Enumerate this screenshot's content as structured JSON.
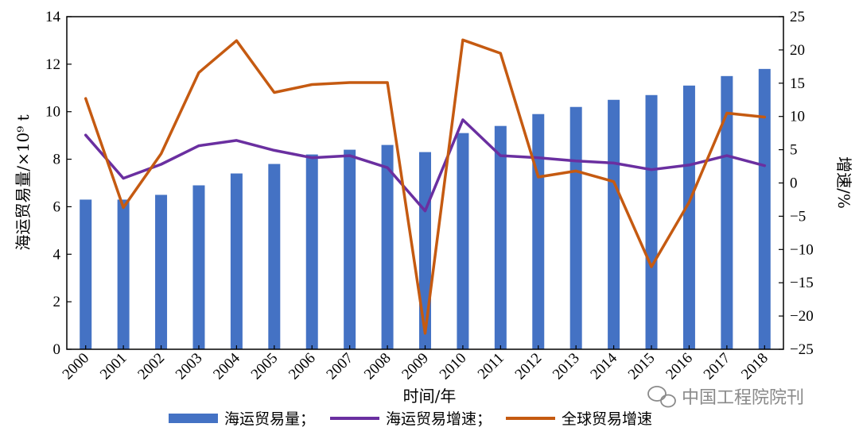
{
  "watermark": {
    "text": "中国工程院院刊",
    "icon": "wechat-icon",
    "color": "#8a8a8a"
  },
  "colors": {
    "bars": "#4472c4",
    "shipping_growth": "#6a2fa0",
    "global_growth": "#c55a11"
  },
  "chart_data": {
    "type": "bar",
    "xlabel": "时间/年",
    "ylabel": "海运贸易量/×10⁹ t",
    "y2label": "增速/%",
    "ylim": [
      0,
      14
    ],
    "y2lim": [
      -25,
      25
    ],
    "yticks": [
      "0",
      "2",
      "4",
      "6",
      "8",
      "10",
      "12",
      "14"
    ],
    "y2ticks": [
      "−25",
      "−20",
      "−15",
      "−10",
      "−5",
      "0",
      "5",
      "10",
      "15",
      "20",
      "25"
    ],
    "categories": [
      "2000",
      "2001",
      "2002",
      "2003",
      "2004",
      "2005",
      "2006",
      "2007",
      "2008",
      "2009",
      "2010",
      "2011",
      "2012",
      "2013",
      "2014",
      "2015",
      "2016",
      "2017",
      "2018"
    ],
    "grid": false,
    "legend_position": "bottom",
    "series": [
      {
        "name": "海运贸易量；",
        "type": "bar",
        "axis": "left",
        "values": [
          6.3,
          6.3,
          6.5,
          6.9,
          7.4,
          7.8,
          8.2,
          8.4,
          8.6,
          8.3,
          9.1,
          9.4,
          9.9,
          10.2,
          10.5,
          10.7,
          11.1,
          11.5,
          11.8
        ]
      },
      {
        "name": "海运贸易增速；",
        "type": "line",
        "axis": "right",
        "values": [
          7.2,
          0.7,
          2.8,
          5.6,
          6.4,
          4.9,
          3.8,
          4.1,
          2.3,
          -4.2,
          9.5,
          4.1,
          3.8,
          3.3,
          3.0,
          2.0,
          2.7,
          4.1,
          2.6
        ]
      },
      {
        "name": "全球贸易增速",
        "type": "line",
        "axis": "right",
        "values": [
          12.7,
          -3.7,
          4.4,
          16.6,
          21.4,
          13.6,
          14.8,
          15.1,
          15.1,
          -22.6,
          21.5,
          19.5,
          0.9,
          1.8,
          0.2,
          -12.6,
          -2.9,
          10.5,
          9.9
        ]
      }
    ]
  }
}
